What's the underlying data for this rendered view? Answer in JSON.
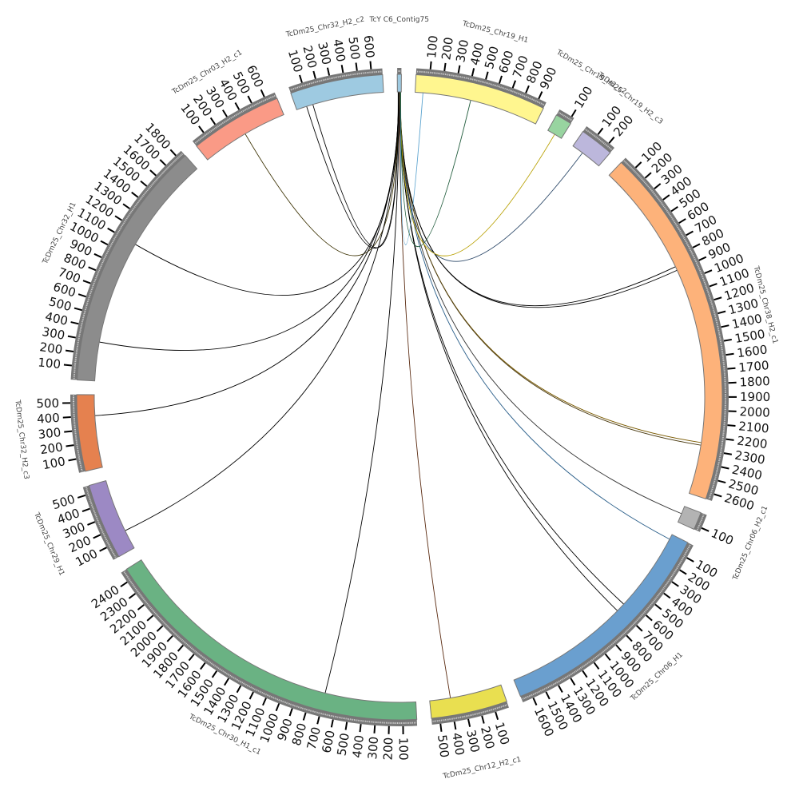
{
  "tick_interval": 100,
  "chromosomes": [
    {
      "name": "TcY C6_Contig75",
      "length": 30,
      "color": "#9ecae1"
    },
    {
      "name": "TcDm25_Chr19_H1",
      "length": 960,
      "color": "#fff68f"
    },
    {
      "name": "TcDm25_Chr19_H2_c2",
      "length": 120,
      "color": "#98d4a0"
    },
    {
      "name": "TcDm25_Chr19_H2_c3",
      "length": 250,
      "color": "#bcb7dc"
    },
    {
      "name": "TcDm25_Chr38_H2_c1",
      "length": 2650,
      "color": "#fdb27a"
    },
    {
      "name": "TcDm25_Chr06_H2_c1",
      "length": 130,
      "color": "#b3b3b3"
    },
    {
      "name": "TcDm25_Chr06_H1",
      "length": 1680,
      "color": "#6a9fcf"
    },
    {
      "name": "TcDm25_Chr12_H2_c1",
      "length": 560,
      "color": "#e9df50"
    },
    {
      "name": "TcDm25_Chr30_H1_c1",
      "length": 2480,
      "color": "#6ab283"
    },
    {
      "name": "TcDm25_Chr29_H1",
      "length": 560,
      "color": "#9c89c4"
    },
    {
      "name": "TcDm25_Chr32_H2_c3",
      "length": 560,
      "color": "#e5814f"
    },
    {
      "name": "TcDm25_Chr32_H1",
      "length": 1850,
      "color": "#8c8c8c"
    },
    {
      "name": "TcDm25_Chr03_H2_c1",
      "length": 680,
      "color": "#fa9a86"
    },
    {
      "name": "TcDm25_Chr32_H2_c2",
      "length": 680,
      "color": "#9ecae1"
    }
  ],
  "links": [
    {
      "source_pos": 6,
      "target": 13,
      "target_pos": 80,
      "color": "#000000"
    },
    {
      "source_pos": 7,
      "target": 13,
      "target_pos": 130,
      "color": "#000000"
    },
    {
      "source_pos": 8,
      "target": 12,
      "target_pos": 350,
      "color": "#3a3000"
    },
    {
      "source_pos": 9,
      "target": 11,
      "target_pos": 1100,
      "color": "#000000"
    },
    {
      "source_pos": 10,
      "target": 11,
      "target_pos": 300,
      "color": "#000000"
    },
    {
      "source_pos": 11,
      "target": 10,
      "target_pos": 400,
      "color": "#000000"
    },
    {
      "source_pos": 12,
      "target": 9,
      "target_pos": 150,
      "color": "#000000"
    },
    {
      "source_pos": 13,
      "target": 8,
      "target_pos": 700,
      "color": "#000000"
    },
    {
      "source_pos": 14,
      "target": 7,
      "target_pos": 400,
      "color": "#5a2a10"
    },
    {
      "source_pos": 15,
      "target": 6,
      "target_pos": 650,
      "color": "#000000"
    },
    {
      "source_pos": 16,
      "target": 6,
      "target_pos": 720,
      "color": "#000000"
    },
    {
      "source_pos": 17,
      "target": 6,
      "target_pos": 40,
      "color": "#2b5f8a"
    },
    {
      "source_pos": 18,
      "target": 5,
      "target_pos": 60,
      "color": "#333333"
    },
    {
      "source_pos": 19,
      "target": 4,
      "target_pos": 2250,
      "color": "#7a5a00"
    },
    {
      "source_pos": 20,
      "target": 4,
      "target_pos": 2270,
      "color": "#4a3a10"
    },
    {
      "source_pos": 21,
      "target": 4,
      "target_pos": 870,
      "color": "#000000"
    },
    {
      "source_pos": 22,
      "target": 4,
      "target_pos": 900,
      "color": "#000000"
    },
    {
      "source_pos": 23,
      "target": 3,
      "target_pos": 90,
      "color": "#2e4a6a"
    },
    {
      "source_pos": 24,
      "target": 2,
      "target_pos": 60,
      "color": "#b8a000"
    },
    {
      "source_pos": 25,
      "target": 1,
      "target_pos": 60,
      "color": "#5ba3cf"
    },
    {
      "source_pos": 26,
      "target": 1,
      "target_pos": 430,
      "color": "#1e5a3a"
    }
  ]
}
